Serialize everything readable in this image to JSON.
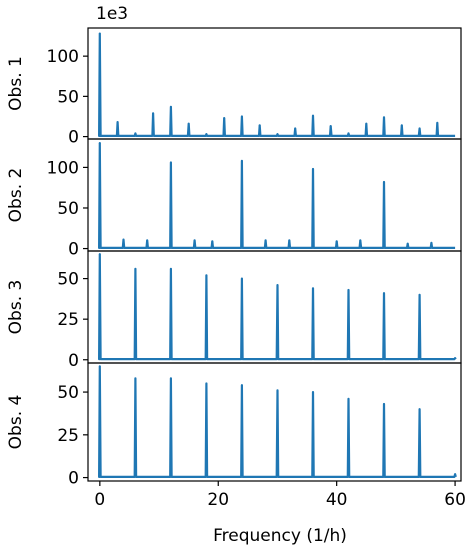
{
  "figure": {
    "scale_label": "1e3",
    "xlabel": "Frequency (1/h)",
    "line_color": "#1f77b4"
  },
  "chart_data": [
    {
      "type": "line",
      "ylabel": "Obs. 1",
      "xlim": [
        -2,
        61
      ],
      "ylim": [
        -3,
        135
      ],
      "yticks": [
        0,
        50,
        100
      ],
      "xticks": [
        0,
        20,
        40,
        60
      ],
      "grid": false,
      "legend": "none",
      "baseline": 0.8,
      "x": [
        0,
        3,
        6,
        9,
        12,
        15,
        18,
        21,
        24,
        27,
        30,
        33,
        36,
        39,
        42,
        45,
        48,
        51,
        54,
        57
      ],
      "y": [
        128,
        18,
        4,
        29,
        37,
        16,
        3,
        23,
        25,
        14,
        3,
        10,
        26,
        13,
        4,
        16,
        24,
        14,
        10,
        17
      ]
    },
    {
      "type": "line",
      "ylabel": "Obs. 2",
      "xlim": [
        -2,
        61
      ],
      "ylim": [
        -3,
        135
      ],
      "yticks": [
        0,
        50,
        100
      ],
      "xticks": [
        0,
        20,
        40,
        60
      ],
      "grid": false,
      "legend": "none",
      "baseline": 0.8,
      "x": [
        0,
        4,
        8,
        12,
        16,
        19,
        24,
        28,
        32,
        36,
        40,
        44,
        48,
        52,
        56
      ],
      "y": [
        130,
        11,
        10,
        106,
        10,
        9,
        108,
        10,
        10,
        98,
        9,
        10,
        82,
        6,
        7
      ]
    },
    {
      "type": "line",
      "ylabel": "Obs. 3",
      "xlim": [
        -2,
        61
      ],
      "ylim": [
        -2,
        67
      ],
      "yticks": [
        0,
        25,
        50
      ],
      "xticks": [
        0,
        20,
        40,
        60
      ],
      "grid": false,
      "legend": "none",
      "baseline": 0.4,
      "x": [
        0,
        6,
        12,
        18,
        24,
        30,
        36,
        42,
        48,
        54,
        60
      ],
      "y": [
        65,
        56,
        56,
        52,
        50,
        46,
        44,
        43,
        41,
        40,
        1
      ]
    },
    {
      "type": "line",
      "ylabel": "Obs. 4",
      "xlim": [
        -2,
        61
      ],
      "ylim": [
        -2,
        67
      ],
      "yticks": [
        0,
        25,
        50
      ],
      "xticks": [
        0,
        20,
        40,
        60
      ],
      "grid": false,
      "legend": "none",
      "baseline": 0.4,
      "x": [
        0,
        6,
        12,
        18,
        24,
        30,
        36,
        42,
        48,
        54,
        60
      ],
      "y": [
        65,
        58,
        58,
        55,
        54,
        51,
        50,
        46,
        43,
        40,
        2
      ]
    }
  ]
}
